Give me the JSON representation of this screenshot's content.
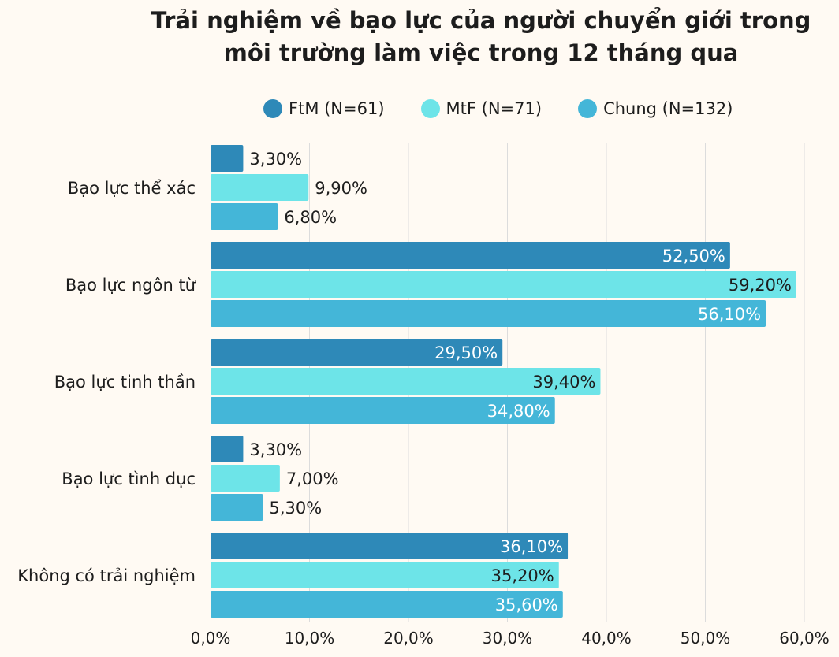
{
  "chart_data": {
    "type": "bar",
    "orientation": "horizontal",
    "title_lines": [
      "Trải nghiệm về bạo lực của người chuyển giới trong",
      "môi trường làm việc trong 12 tháng qua"
    ],
    "categories": [
      "Bạo lực thể xác",
      "Bạo lực ngôn từ",
      "Bạo lực tinh thần",
      "Bạo lực tình dục",
      "Không có trải nghiệm"
    ],
    "series": [
      {
        "name": "FtM (N=61)",
        "color": "#2e89b8",
        "values": [
          3.3,
          52.5,
          29.5,
          3.3,
          36.1
        ],
        "labels": [
          "3,30%",
          "52,50%",
          "29,50%",
          "3,30%",
          "36,10%"
        ]
      },
      {
        "name": "MtF (N=71)",
        "color": "#6de4e8",
        "values": [
          9.9,
          59.2,
          39.4,
          7.0,
          35.2
        ],
        "labels": [
          "9,90%",
          "59,20%",
          "39,40%",
          "7,00%",
          "35,20%"
        ]
      },
      {
        "name": "Chung (N=132)",
        "color": "#44b6d8",
        "values": [
          6.8,
          56.1,
          34.8,
          5.3,
          35.6
        ],
        "labels": [
          "6,80%",
          "56,10%",
          "34,80%",
          "5,30%",
          "35,60%"
        ]
      }
    ],
    "xlim": [
      0,
      60
    ],
    "xticks": [
      0,
      10,
      20,
      30,
      40,
      50,
      60
    ],
    "xtick_labels": [
      "0,0%",
      "10,0%",
      "20,0%",
      "30,0%",
      "40,0%",
      "50,0%",
      "60,0%"
    ],
    "grid": "vertical",
    "legend_position": "top"
  }
}
